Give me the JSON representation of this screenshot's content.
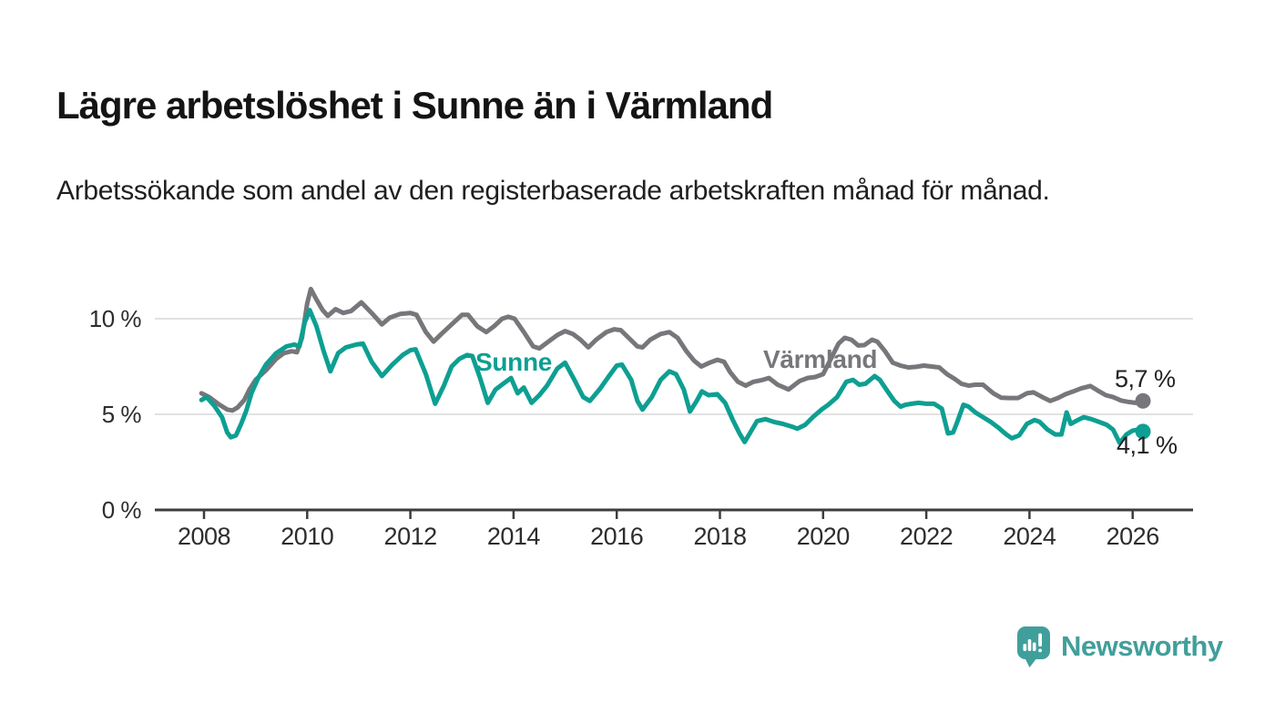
{
  "header": {
    "title": "Lägre arbetslöshet i Sunne än i Värmland",
    "subtitle": "Arbetssökande som andel av den registerbaserade arbetskraften månad för månad."
  },
  "chart_data": {
    "type": "line",
    "title": "Lägre arbetslöshet i Sunne än i Värmland",
    "xlabel": "",
    "ylabel": "Arbetssökande som andel av den registerbaserade arbetskraften",
    "unit": "%",
    "grid": "horizontal",
    "legend": "inline-labels",
    "x_axis": {
      "ticks": [
        2008,
        2010,
        2012,
        2014,
        2016,
        2018,
        2020,
        2022,
        2024,
        2026
      ],
      "range": [
        2007.05,
        2027.2
      ]
    },
    "y_axis": {
      "tick_labels": [
        "0 %",
        "5 %",
        "10 %"
      ],
      "tick_values": [
        0,
        5,
        10
      ],
      "range": [
        0,
        12.9
      ]
    },
    "colors": {
      "grid": "#e2e2e2",
      "axis": "#3d3d3d",
      "sunne": "#0d9f92",
      "varmland": "#76767b"
    },
    "series": [
      {
        "name": "Värmland",
        "color": "#76767b",
        "end_label": "5,7 %",
        "end_value": 5.7,
        "points": [
          [
            2007.95,
            6.1
          ],
          [
            2008.1,
            5.9
          ],
          [
            2008.3,
            5.5
          ],
          [
            2008.45,
            5.25
          ],
          [
            2008.55,
            5.2
          ],
          [
            2008.65,
            5.35
          ],
          [
            2008.78,
            5.75
          ],
          [
            2008.88,
            6.3
          ],
          [
            2009.0,
            6.8
          ],
          [
            2009.2,
            7.3
          ],
          [
            2009.4,
            7.9
          ],
          [
            2009.55,
            8.2
          ],
          [
            2009.7,
            8.3
          ],
          [
            2009.8,
            8.25
          ],
          [
            2009.9,
            9.0
          ],
          [
            2010.0,
            10.8
          ],
          [
            2010.07,
            11.55
          ],
          [
            2010.18,
            11.0
          ],
          [
            2010.3,
            10.45
          ],
          [
            2010.4,
            10.15
          ],
          [
            2010.55,
            10.5
          ],
          [
            2010.7,
            10.3
          ],
          [
            2010.85,
            10.4
          ],
          [
            2011.05,
            10.85
          ],
          [
            2011.25,
            10.3
          ],
          [
            2011.45,
            9.7
          ],
          [
            2011.6,
            10.05
          ],
          [
            2011.8,
            10.25
          ],
          [
            2012.0,
            10.3
          ],
          [
            2012.12,
            10.2
          ],
          [
            2012.3,
            9.3
          ],
          [
            2012.45,
            8.8
          ],
          [
            2012.6,
            9.2
          ],
          [
            2012.8,
            9.7
          ],
          [
            2013.0,
            10.2
          ],
          [
            2013.12,
            10.2
          ],
          [
            2013.3,
            9.6
          ],
          [
            2013.47,
            9.3
          ],
          [
            2013.62,
            9.6
          ],
          [
            2013.78,
            10.0
          ],
          [
            2013.9,
            10.1
          ],
          [
            2014.02,
            10.0
          ],
          [
            2014.2,
            9.3
          ],
          [
            2014.38,
            8.55
          ],
          [
            2014.5,
            8.45
          ],
          [
            2014.65,
            8.75
          ],
          [
            2014.85,
            9.15
          ],
          [
            2015.0,
            9.35
          ],
          [
            2015.15,
            9.2
          ],
          [
            2015.3,
            8.9
          ],
          [
            2015.45,
            8.5
          ],
          [
            2015.6,
            8.9
          ],
          [
            2015.8,
            9.3
          ],
          [
            2015.95,
            9.45
          ],
          [
            2016.08,
            9.4
          ],
          [
            2016.25,
            8.95
          ],
          [
            2016.4,
            8.55
          ],
          [
            2016.5,
            8.5
          ],
          [
            2016.65,
            8.9
          ],
          [
            2016.85,
            9.2
          ],
          [
            2017.02,
            9.3
          ],
          [
            2017.18,
            9.0
          ],
          [
            2017.35,
            8.3
          ],
          [
            2017.5,
            7.8
          ],
          [
            2017.64,
            7.5
          ],
          [
            2017.8,
            7.7
          ],
          [
            2017.95,
            7.85
          ],
          [
            2018.08,
            7.75
          ],
          [
            2018.2,
            7.2
          ],
          [
            2018.35,
            6.7
          ],
          [
            2018.5,
            6.5
          ],
          [
            2018.65,
            6.7
          ],
          [
            2018.8,
            6.78
          ],
          [
            2018.95,
            6.9
          ],
          [
            2019.12,
            6.55
          ],
          [
            2019.33,
            6.3
          ],
          [
            2019.55,
            6.75
          ],
          [
            2019.7,
            6.9
          ],
          [
            2019.85,
            6.95
          ],
          [
            2020.0,
            7.1
          ],
          [
            2020.15,
            7.9
          ],
          [
            2020.3,
            8.7
          ],
          [
            2020.42,
            9.0
          ],
          [
            2020.55,
            8.9
          ],
          [
            2020.68,
            8.6
          ],
          [
            2020.8,
            8.62
          ],
          [
            2020.95,
            8.9
          ],
          [
            2021.05,
            8.8
          ],
          [
            2021.2,
            8.3
          ],
          [
            2021.35,
            7.7
          ],
          [
            2021.5,
            7.55
          ],
          [
            2021.65,
            7.45
          ],
          [
            2021.8,
            7.48
          ],
          [
            2021.95,
            7.55
          ],
          [
            2022.1,
            7.5
          ],
          [
            2022.25,
            7.45
          ],
          [
            2022.4,
            7.1
          ],
          [
            2022.55,
            6.85
          ],
          [
            2022.68,
            6.6
          ],
          [
            2022.82,
            6.5
          ],
          [
            2022.95,
            6.55
          ],
          [
            2023.1,
            6.55
          ],
          [
            2023.3,
            6.1
          ],
          [
            2023.45,
            5.87
          ],
          [
            2023.6,
            5.85
          ],
          [
            2023.78,
            5.85
          ],
          [
            2023.95,
            6.1
          ],
          [
            2024.08,
            6.15
          ],
          [
            2024.25,
            5.9
          ],
          [
            2024.4,
            5.7
          ],
          [
            2024.55,
            5.85
          ],
          [
            2024.7,
            6.05
          ],
          [
            2024.85,
            6.2
          ],
          [
            2025.0,
            6.35
          ],
          [
            2025.18,
            6.48
          ],
          [
            2025.32,
            6.25
          ],
          [
            2025.48,
            6.0
          ],
          [
            2025.62,
            5.9
          ],
          [
            2025.78,
            5.72
          ],
          [
            2025.92,
            5.65
          ],
          [
            2026.05,
            5.6
          ],
          [
            2026.2,
            5.7
          ]
        ]
      },
      {
        "name": "Sunne",
        "color": "#0d9f92",
        "end_label": "4,1 %",
        "end_value": 4.1,
        "points": [
          [
            2007.95,
            5.75
          ],
          [
            2008.05,
            5.9
          ],
          [
            2008.2,
            5.45
          ],
          [
            2008.35,
            4.85
          ],
          [
            2008.45,
            4.05
          ],
          [
            2008.52,
            3.8
          ],
          [
            2008.62,
            3.9
          ],
          [
            2008.72,
            4.5
          ],
          [
            2008.82,
            5.2
          ],
          [
            2008.92,
            6.1
          ],
          [
            2009.05,
            6.9
          ],
          [
            2009.2,
            7.6
          ],
          [
            2009.4,
            8.2
          ],
          [
            2009.6,
            8.55
          ],
          [
            2009.75,
            8.65
          ],
          [
            2009.85,
            8.55
          ],
          [
            2009.95,
            9.8
          ],
          [
            2010.05,
            10.45
          ],
          [
            2010.18,
            9.6
          ],
          [
            2010.32,
            8.3
          ],
          [
            2010.45,
            7.25
          ],
          [
            2010.6,
            8.2
          ],
          [
            2010.75,
            8.5
          ],
          [
            2010.95,
            8.65
          ],
          [
            2011.08,
            8.7
          ],
          [
            2011.25,
            7.75
          ],
          [
            2011.45,
            7.0
          ],
          [
            2011.65,
            7.6
          ],
          [
            2011.85,
            8.1
          ],
          [
            2012.0,
            8.35
          ],
          [
            2012.1,
            8.4
          ],
          [
            2012.3,
            7.1
          ],
          [
            2012.48,
            5.55
          ],
          [
            2012.65,
            6.5
          ],
          [
            2012.8,
            7.5
          ],
          [
            2012.95,
            7.9
          ],
          [
            2013.1,
            8.1
          ],
          [
            2013.2,
            8.05
          ],
          [
            2013.35,
            6.9
          ],
          [
            2013.5,
            5.6
          ],
          [
            2013.65,
            6.3
          ],
          [
            2013.8,
            6.6
          ],
          [
            2013.95,
            6.9
          ],
          [
            2014.08,
            6.1
          ],
          [
            2014.2,
            6.4
          ],
          [
            2014.35,
            5.6
          ],
          [
            2014.5,
            6.0
          ],
          [
            2014.65,
            6.5
          ],
          [
            2014.85,
            7.4
          ],
          [
            2015.0,
            7.7
          ],
          [
            2015.18,
            6.8
          ],
          [
            2015.35,
            5.9
          ],
          [
            2015.48,
            5.7
          ],
          [
            2015.68,
            6.35
          ],
          [
            2015.85,
            7.0
          ],
          [
            2016.0,
            7.55
          ],
          [
            2016.1,
            7.6
          ],
          [
            2016.28,
            6.8
          ],
          [
            2016.4,
            5.7
          ],
          [
            2016.5,
            5.25
          ],
          [
            2016.68,
            5.9
          ],
          [
            2016.85,
            6.8
          ],
          [
            2017.02,
            7.25
          ],
          [
            2017.15,
            7.1
          ],
          [
            2017.3,
            6.3
          ],
          [
            2017.42,
            5.15
          ],
          [
            2017.55,
            5.7
          ],
          [
            2017.65,
            6.2
          ],
          [
            2017.78,
            6.0
          ],
          [
            2017.95,
            6.05
          ],
          [
            2018.1,
            5.6
          ],
          [
            2018.25,
            4.7
          ],
          [
            2018.38,
            4.0
          ],
          [
            2018.48,
            3.55
          ],
          [
            2018.6,
            4.1
          ],
          [
            2018.72,
            4.65
          ],
          [
            2018.88,
            4.75
          ],
          [
            2019.05,
            4.6
          ],
          [
            2019.22,
            4.5
          ],
          [
            2019.4,
            4.35
          ],
          [
            2019.5,
            4.25
          ],
          [
            2019.65,
            4.45
          ],
          [
            2019.8,
            4.85
          ],
          [
            2019.97,
            5.25
          ],
          [
            2020.1,
            5.5
          ],
          [
            2020.27,
            5.9
          ],
          [
            2020.45,
            6.7
          ],
          [
            2020.58,
            6.8
          ],
          [
            2020.7,
            6.55
          ],
          [
            2020.82,
            6.6
          ],
          [
            2021.0,
            7.0
          ],
          [
            2021.1,
            6.8
          ],
          [
            2021.25,
            6.2
          ],
          [
            2021.38,
            5.7
          ],
          [
            2021.5,
            5.4
          ],
          [
            2021.6,
            5.5
          ],
          [
            2021.72,
            5.55
          ],
          [
            2021.85,
            5.6
          ],
          [
            2022.0,
            5.55
          ],
          [
            2022.15,
            5.55
          ],
          [
            2022.3,
            5.3
          ],
          [
            2022.42,
            4.0
          ],
          [
            2022.52,
            4.05
          ],
          [
            2022.6,
            4.6
          ],
          [
            2022.72,
            5.5
          ],
          [
            2022.82,
            5.4
          ],
          [
            2022.95,
            5.1
          ],
          [
            2023.1,
            4.85
          ],
          [
            2023.25,
            4.6
          ],
          [
            2023.4,
            4.3
          ],
          [
            2023.55,
            3.95
          ],
          [
            2023.66,
            3.75
          ],
          [
            2023.8,
            3.9
          ],
          [
            2023.95,
            4.5
          ],
          [
            2024.1,
            4.7
          ],
          [
            2024.2,
            4.6
          ],
          [
            2024.35,
            4.2
          ],
          [
            2024.5,
            3.95
          ],
          [
            2024.62,
            3.95
          ],
          [
            2024.72,
            5.1
          ],
          [
            2024.8,
            4.5
          ],
          [
            2024.9,
            4.65
          ],
          [
            2025.05,
            4.85
          ],
          [
            2025.2,
            4.75
          ],
          [
            2025.35,
            4.6
          ],
          [
            2025.5,
            4.45
          ],
          [
            2025.62,
            4.2
          ],
          [
            2025.75,
            3.5
          ],
          [
            2025.88,
            3.95
          ],
          [
            2026.0,
            4.15
          ],
          [
            2026.1,
            4.2
          ],
          [
            2026.2,
            4.1
          ]
        ]
      }
    ]
  },
  "footer": {
    "brand": "Newsworthy",
    "brand_color": "#419f9b"
  }
}
